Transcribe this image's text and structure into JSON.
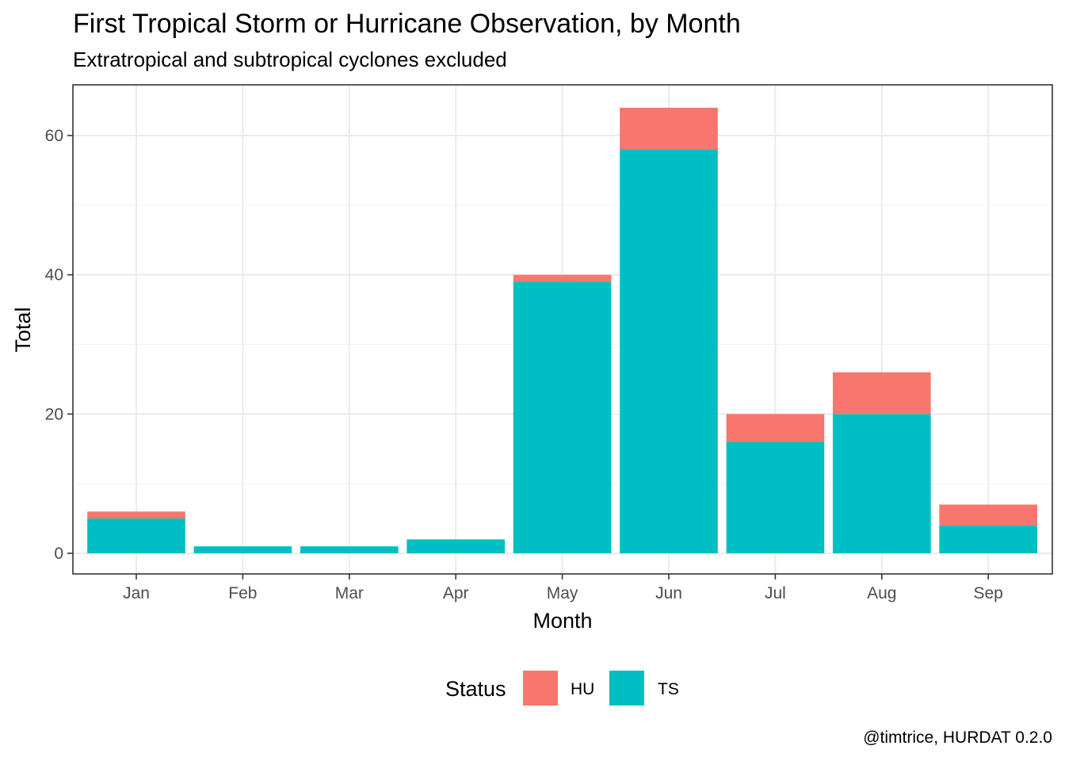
{
  "chart_data": {
    "type": "bar",
    "stacked": true,
    "title": "First Tropical Storm or Hurricane Observation, by Month",
    "subtitle": "Extratropical and subtropical cyclones excluded",
    "xlabel": "Month",
    "ylabel": "Total",
    "categories": [
      "Jan",
      "Feb",
      "Mar",
      "Apr",
      "May",
      "Jun",
      "Jul",
      "Aug",
      "Sep"
    ],
    "series": [
      {
        "name": "TS",
        "color": "#00BFC4",
        "values": [
          5,
          1,
          1,
          2,
          39,
          58,
          16,
          20,
          4
        ]
      },
      {
        "name": "HU",
        "color": "#F8766D",
        "values": [
          1,
          0,
          0,
          0,
          1,
          6,
          4,
          6,
          3
        ]
      }
    ],
    "ylim": [
      0,
      64
    ],
    "yticks": [
      0,
      20,
      40,
      60
    ],
    "grid": true,
    "legend": {
      "title": "Status",
      "position": "bottom",
      "items": [
        {
          "label": "HU",
          "color": "#F8766D"
        },
        {
          "label": "TS",
          "color": "#00BFC4"
        }
      ]
    },
    "caption": "@timtrice, HURDAT 0.2.0"
  }
}
